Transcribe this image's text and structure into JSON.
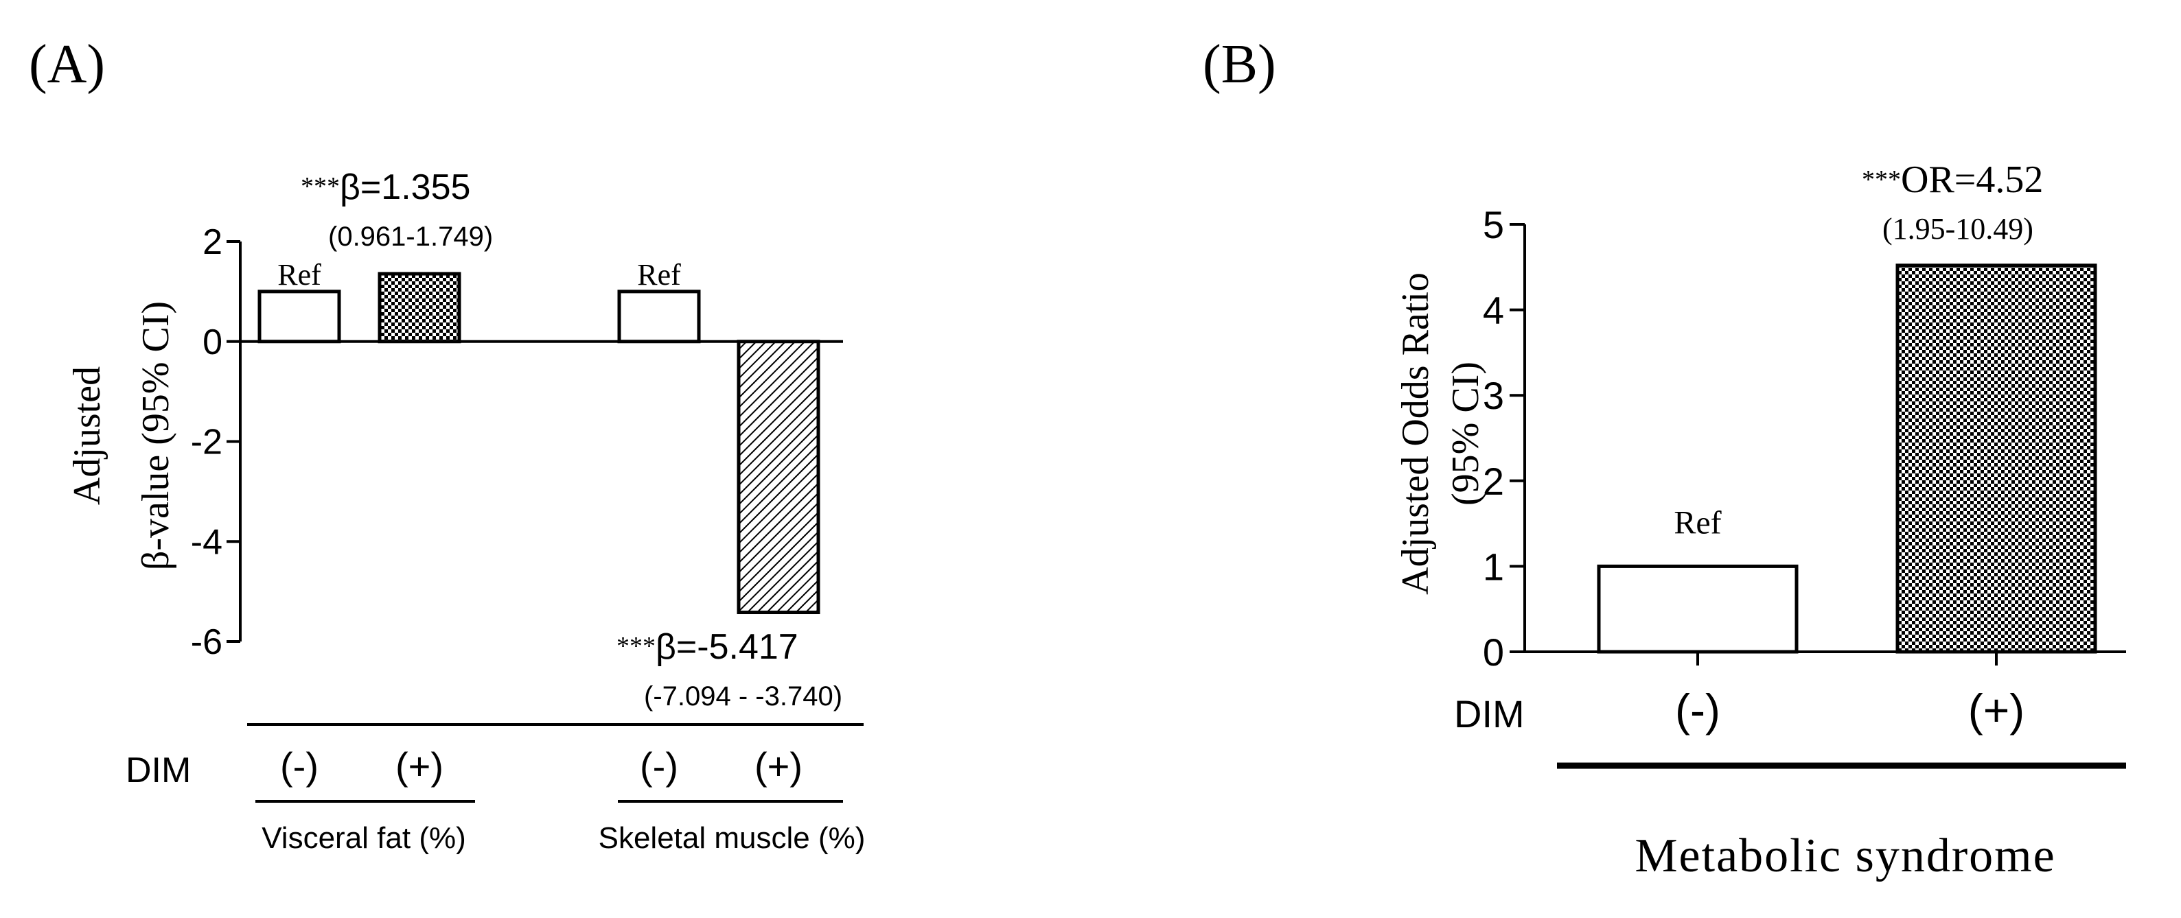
{
  "panel_a": {
    "label": "(A)",
    "ylabel_line1": "Adjusted",
    "ylabel_line2": "β-value (95% CI)",
    "dim_label": "DIM",
    "annotations": {
      "vf_pos": {
        "stars": "***",
        "text": "β=1.355",
        "ci": "(0.961-1.749)"
      },
      "sm_pos": {
        "stars": "***",
        "text": "β=-5.417",
        "ci": "(-7.094 - -3.740)"
      }
    }
  },
  "panel_b": {
    "label": "(B)",
    "ylabel_line1": "Adjusted Odds Ratio",
    "ylabel_line2": "(95% CI)",
    "dim_label": "DIM",
    "annotation": {
      "stars": "***",
      "text": "OR=4.52",
      "ci": "(1.95-10.49)"
    },
    "group_label": "Metabolic syndrome"
  },
  "chart_data": [
    {
      "type": "bar",
      "panel": "A",
      "ylim": [
        -6,
        2
      ],
      "yticks": [
        2,
        0,
        -2,
        -4,
        -6
      ],
      "ytick_labels": [
        "2",
        "0",
        "-2",
        "-4",
        "-6"
      ],
      "groups": [
        {
          "name": "Visceral fat (%)",
          "categories": [
            "(-)",
            "(+)"
          ],
          "values": [
            1,
            1.355
          ],
          "bar_labels": [
            "Ref",
            ""
          ],
          "patterns": [
            "white",
            "checker"
          ]
        },
        {
          "name": "Skeletal muscle (%)",
          "categories": [
            "(-)",
            "(+)"
          ],
          "values": [
            1,
            -5.417
          ],
          "bar_labels": [
            "Ref",
            ""
          ],
          "patterns": [
            "white",
            "hatch"
          ]
        }
      ]
    },
    {
      "type": "bar",
      "panel": "B",
      "ylim": [
        0,
        5
      ],
      "yticks": [
        5,
        4,
        3,
        2,
        1,
        0
      ],
      "ytick_labels": [
        "5",
        "4",
        "3",
        "2",
        "1",
        "0"
      ],
      "groups": [
        {
          "name": "Metabolic syndrome",
          "categories": [
            "(-)",
            "(+)"
          ],
          "values": [
            1,
            4.52
          ],
          "bar_labels": [
            "Ref",
            ""
          ],
          "patterns": [
            "white",
            "checker"
          ]
        }
      ]
    }
  ],
  "colors": {
    "ink": "#000000",
    "fill": "#ffffff"
  }
}
